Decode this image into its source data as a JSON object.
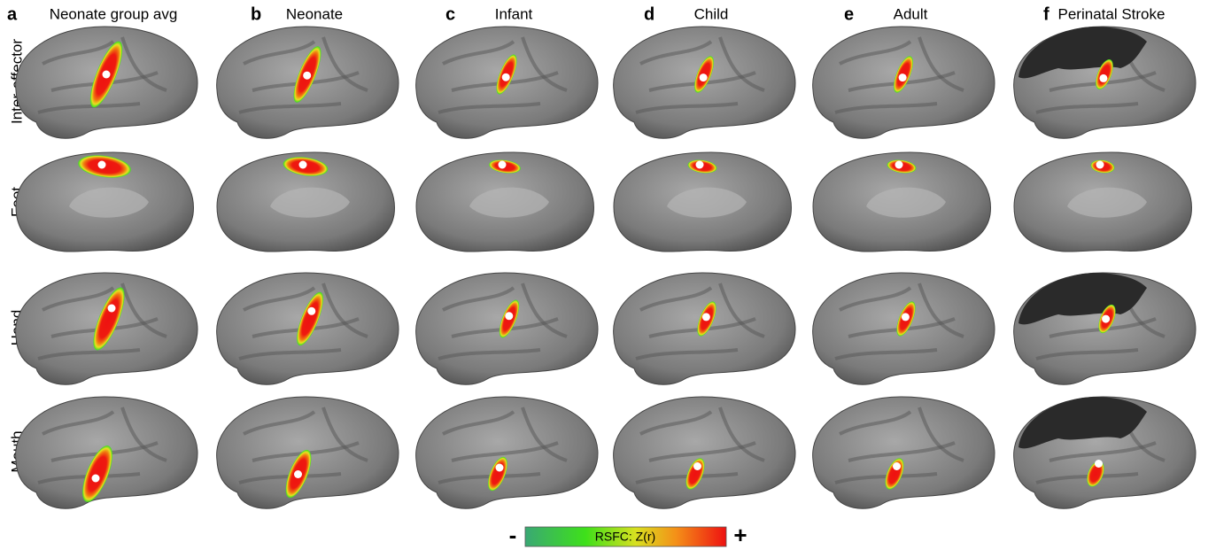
{
  "panels": [
    {
      "letter": "a",
      "title": "Neonate group avg"
    },
    {
      "letter": "b",
      "title": "Neonate"
    },
    {
      "letter": "c",
      "title": "Infant"
    },
    {
      "letter": "d",
      "title": "Child"
    },
    {
      "letter": "e",
      "title": "Adult"
    },
    {
      "letter": "f",
      "title": "Perinatal Stroke"
    }
  ],
  "rows": [
    "Inter-effector",
    "Foot",
    "Hand",
    "Mouth"
  ],
  "colorbar": {
    "min_label": "-",
    "label": "RSFC: Z(r)",
    "max_label": "+"
  }
}
